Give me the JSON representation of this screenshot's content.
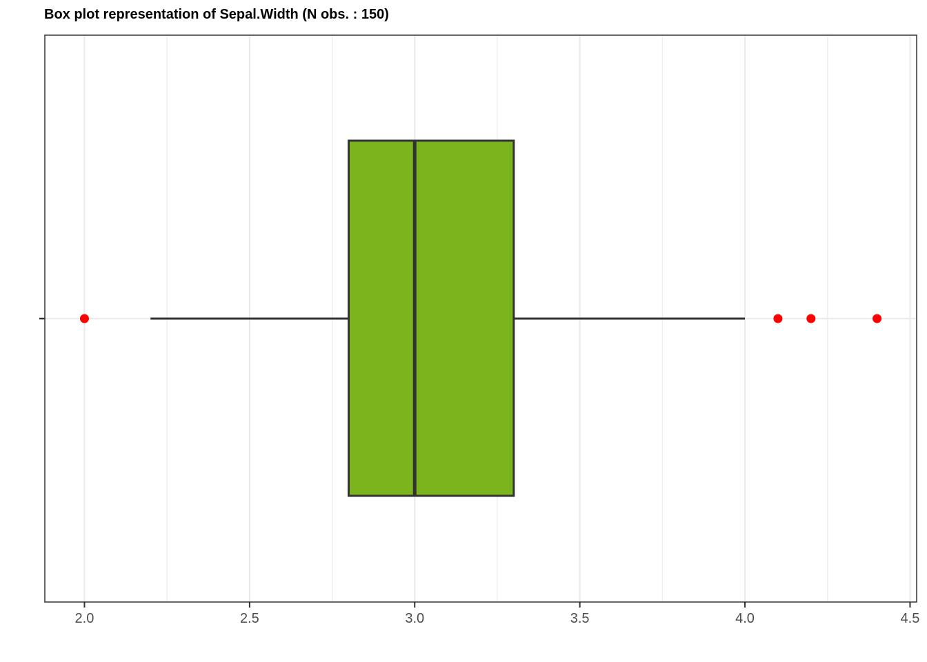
{
  "chart_data": {
    "type": "boxplot",
    "title": "Box plot representation of Sepal.Width (N obs. : 150)",
    "variable": "Sepal.Width",
    "n_obs": 150,
    "orientation": "horizontal",
    "xlim": [
      1.88,
      4.52
    ],
    "x_ticks": [
      2.0,
      2.5,
      3.0,
      3.5,
      4.0,
      4.5
    ],
    "x_tick_labels": [
      "2.0",
      "2.5",
      "3.0",
      "3.5",
      "4.0",
      "4.5"
    ],
    "x_minor_ticks": [
      2.25,
      2.75,
      3.25,
      3.75,
      4.25
    ],
    "grid": true,
    "box": {
      "q1": 2.8,
      "median": 3.0,
      "q3": 3.3,
      "whisker_low": 2.2,
      "whisker_high": 4.0
    },
    "outliers": [
      2.0,
      4.1,
      4.2,
      4.4
    ],
    "colors": {
      "box_fill": "#7cb41e",
      "box_line": "#333333",
      "outlier": "#ff0000",
      "grid_major": "#ebebeb",
      "grid_minor": "#ebebeb",
      "panel_border": "#333333",
      "tick_text": "#4d4d4d"
    }
  }
}
